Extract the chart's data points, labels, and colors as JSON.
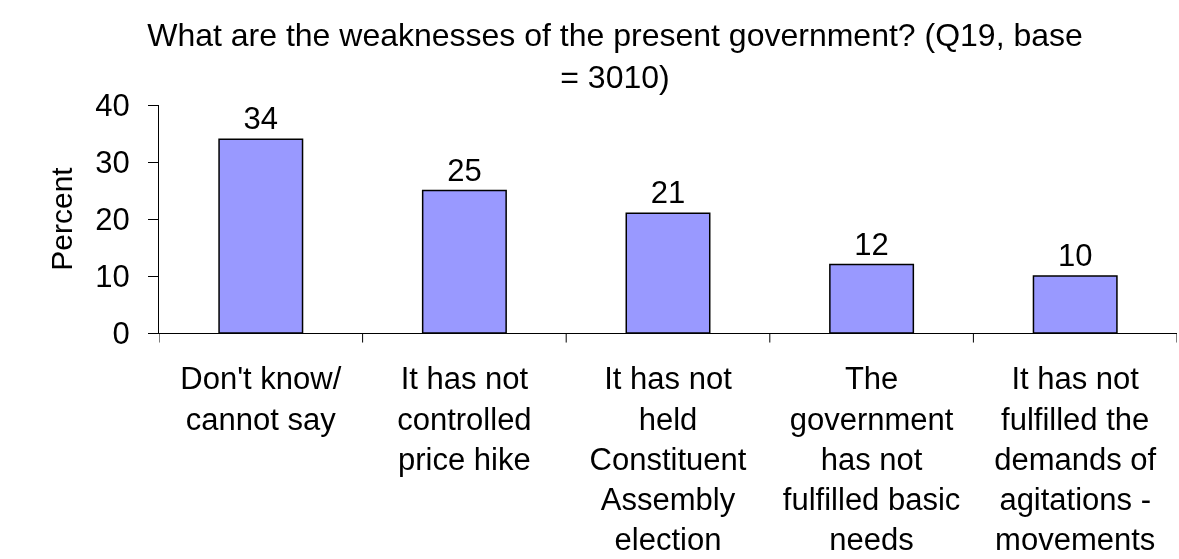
{
  "chart_data": {
    "type": "bar",
    "title": "What are the weaknesses of the present government? (Q19, base = 3010)",
    "ylabel": "Percent",
    "categories": [
      "Don't know/ cannot say",
      "It has not controlled price hike",
      "It has not held Constituent Assembly election",
      "The government has not fulfilled basic needs",
      "It has not fulfilled the demands of agitations - movements"
    ],
    "values": [
      34,
      25,
      21,
      12,
      10
    ],
    "color": "#9999ff",
    "ylim": [
      0,
      40
    ],
    "yticks": [
      0,
      10,
      20,
      30,
      40
    ],
    "data_labels": true,
    "grid": false
  }
}
